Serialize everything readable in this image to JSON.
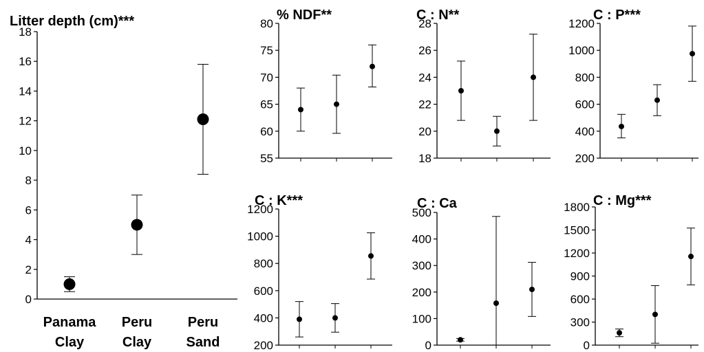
{
  "categories": [
    "Panama Clay",
    "Peru Clay",
    "Peru Sand"
  ],
  "category_lines": [
    [
      "Panama",
      "Clay"
    ],
    [
      "Peru",
      "Clay"
    ],
    [
      "Peru",
      "Sand"
    ]
  ],
  "chart_data": [
    {
      "type": "scatter",
      "title": "Litter depth (cm)***",
      "categories": [
        "Panama Clay",
        "Peru Clay",
        "Peru Sand"
      ],
      "values": [
        1.0,
        5.0,
        12.1
      ],
      "err_low": [
        0.5,
        3.0,
        8.4
      ],
      "err_high": [
        1.5,
        7.0,
        15.8
      ],
      "ylim": [
        0,
        18
      ],
      "ticks": [
        0,
        2,
        4,
        6,
        8,
        10,
        12,
        14,
        16,
        18
      ]
    },
    {
      "type": "scatter",
      "title": "% NDF**",
      "categories": [
        "Panama Clay",
        "Peru Clay",
        "Peru Sand"
      ],
      "values": [
        64,
        65,
        72
      ],
      "err_low": [
        60,
        59.6,
        68.2
      ],
      "err_high": [
        68,
        70.4,
        76
      ],
      "ylim": [
        55,
        80
      ],
      "ticks": [
        55,
        60,
        65,
        70,
        75,
        80
      ]
    },
    {
      "type": "scatter",
      "title": "C : N**",
      "categories": [
        "Panama Clay",
        "Peru Clay",
        "Peru Sand"
      ],
      "values": [
        23,
        20,
        24
      ],
      "err_low": [
        20.8,
        18.9,
        20.8
      ],
      "err_high": [
        25.2,
        21.1,
        27.2
      ],
      "ylim": [
        18,
        28
      ],
      "ticks": [
        18,
        20,
        22,
        24,
        26,
        28
      ]
    },
    {
      "type": "scatter",
      "title": "C : P***",
      "categories": [
        "Panama Clay",
        "Peru Clay",
        "Peru Sand"
      ],
      "values": [
        435,
        630,
        975
      ],
      "err_low": [
        350,
        515,
        770
      ],
      "err_high": [
        525,
        745,
        1180
      ],
      "ylim": [
        200,
        1200
      ],
      "ticks": [
        200,
        400,
        600,
        800,
        1000,
        1200
      ]
    },
    {
      "type": "scatter",
      "title": "C : K***",
      "categories": [
        "Panama Clay",
        "Peru Clay",
        "Peru Sand"
      ],
      "values": [
        390,
        400,
        855
      ],
      "err_low": [
        260,
        295,
        685
      ],
      "err_high": [
        520,
        505,
        1025
      ],
      "ylim": [
        200,
        1200
      ],
      "ticks": [
        200,
        400,
        600,
        800,
        1000,
        1200
      ]
    },
    {
      "type": "scatter",
      "title": "C : Ca",
      "categories": [
        "Panama Clay",
        "Peru Clay",
        "Peru Sand"
      ],
      "values": [
        20,
        158,
        210
      ],
      "err_low": [
        15,
        0,
        108
      ],
      "err_high": [
        25,
        485,
        312
      ],
      "ylim": [
        0,
        500
      ],
      "ticks": [
        0,
        100,
        200,
        300,
        400,
        500
      ]
    },
    {
      "type": "scatter",
      "title": "C : Mg***",
      "categories": [
        "Panama Clay",
        "Peru Clay",
        "Peru Sand"
      ],
      "values": [
        160,
        400,
        1155
      ],
      "err_low": [
        110,
        25,
        785
      ],
      "err_high": [
        210,
        775,
        1525
      ],
      "ylim": [
        0,
        1800
      ],
      "ticks": [
        0,
        300,
        600,
        900,
        1200,
        1500,
        1800
      ]
    }
  ]
}
